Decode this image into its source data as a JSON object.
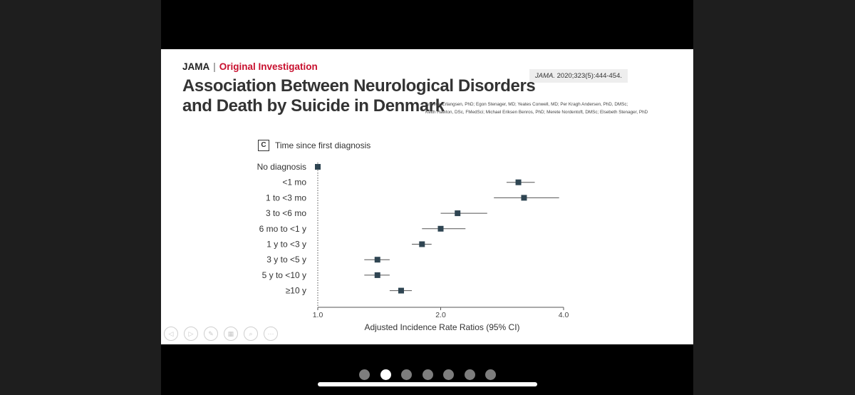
{
  "slide": {
    "journal": "JAMA",
    "separator": "|",
    "section": "Original Investigation",
    "citation_journal": "JAMA.",
    "citation_rest": " 2020;323(5):444-454.",
    "title_line1": "Association Between Neurological Disorders",
    "title_line2": "and Death by Suicide in Denmark",
    "authors_line1": "Annette Erlangsen, PhD; Egon Stenager, MD; Yeates Conwell, MD; Per Kragh Andersen, PhD, DMSc;",
    "authors_line2": "Keith Hawton, DSc, FMedSci; Michael Eriksen Benros, PhD; Merete Nordentoft, DMSc; Elsebeth Stenager, PhD",
    "panel_letter": "C",
    "panel_title": "Time since first diagnosis"
  },
  "chart_data": {
    "type": "forest",
    "xlabel": "Adjusted Incidence Rate Ratios (95% CI)",
    "xscale": "log",
    "xlim": [
      1.0,
      4.0
    ],
    "xticks": [
      1.0,
      2.0,
      4.0
    ],
    "xtick_labels": [
      "1.0",
      "2.0",
      "4.0"
    ],
    "reference_line": 1.0,
    "marker_color": "#2f4552",
    "categories": [
      "No diagnosis",
      "<1 mo",
      "1 to <3 mo",
      "3 to <6 mo",
      "6 mo to <1 y",
      "1 y to <3 y",
      "3 y to <5 y",
      "5 y to <10 y",
      "≥10 y"
    ],
    "estimates": [
      1.0,
      3.1,
      3.2,
      2.2,
      2.0,
      1.8,
      1.4,
      1.4,
      1.6
    ],
    "ci_lower": [
      1.0,
      2.9,
      2.7,
      2.0,
      1.8,
      1.7,
      1.3,
      1.3,
      1.5
    ],
    "ci_upper": [
      1.0,
      3.4,
      3.9,
      2.6,
      2.3,
      1.9,
      1.5,
      1.5,
      1.7
    ]
  },
  "controls": {
    "prev_icon": "◁",
    "next_icon": "▷",
    "pen_icon": "✎",
    "slides_icon": "▦",
    "zoom_icon": "⌕",
    "more_icon": "···"
  },
  "pager": {
    "count": 7,
    "active_index": 1
  }
}
